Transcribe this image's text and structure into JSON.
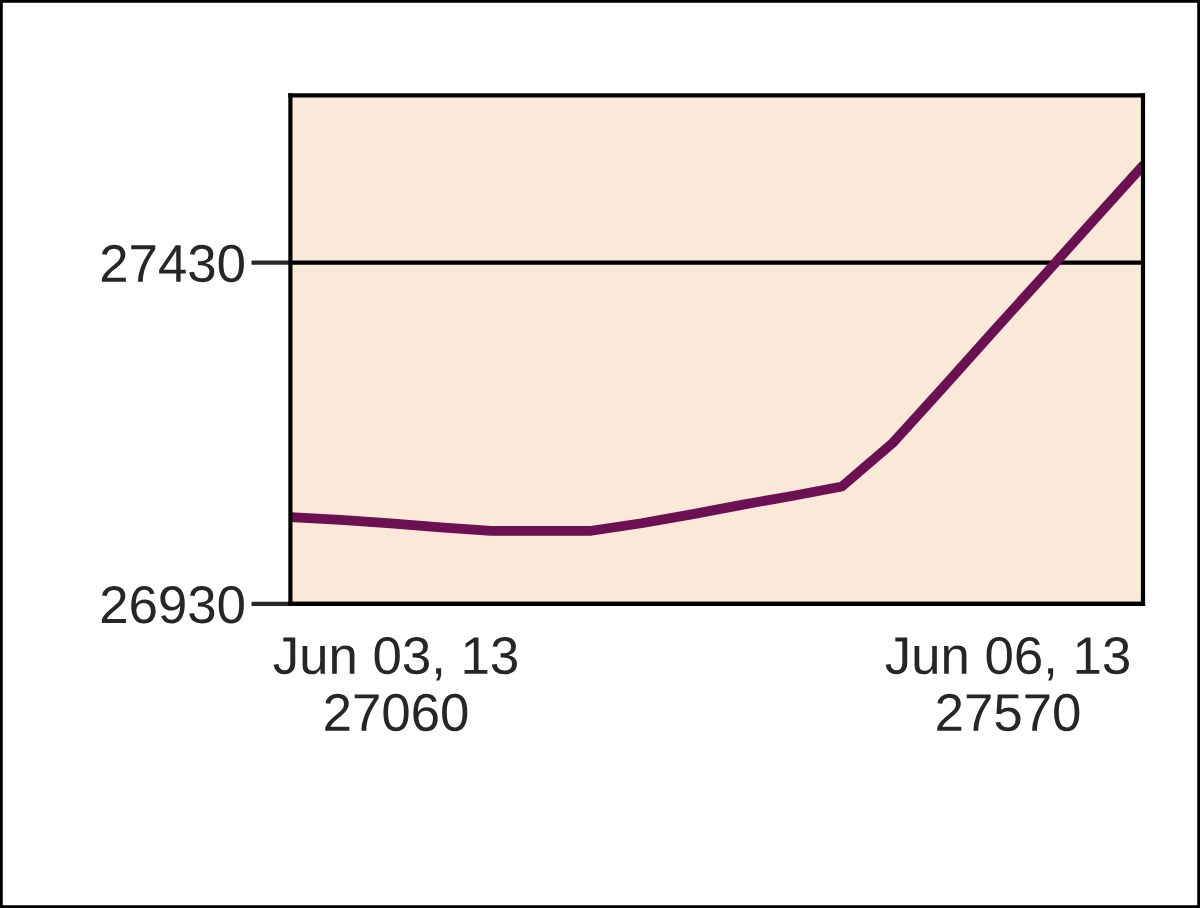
{
  "chart_data": {
    "type": "line",
    "categories": [
      null,
      null,
      null,
      null,
      null,
      null,
      null,
      null,
      null,
      null,
      null,
      null,
      null,
      null,
      null,
      null,
      null,
      null
    ],
    "series": [
      {
        "color": "#6b1052",
        "values": [
          27057,
          27053,
          27048,
          27042,
          27037,
          27037,
          27037,
          27048,
          27061,
          27075,
          27088,
          27102,
          27165,
          27246,
          27328,
          27409,
          27491,
          27572
        ]
      }
    ],
    "ylim": [
      26930,
      27675
    ],
    "yticks": [
      26930,
      27430
    ],
    "grid": "y",
    "annotations": [
      "Jun 03, 13\n27060",
      "Jun 06, 13\n27570"
    ],
    "line_style": "solid",
    "marker": "none"
  }
}
